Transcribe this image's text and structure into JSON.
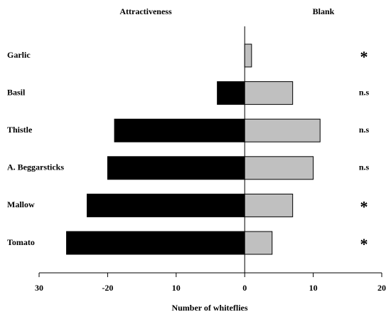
{
  "chart_data": {
    "type": "diverging-bar",
    "x_label": "Number of whiteflies",
    "categories": [
      "Garlic",
      "Basil",
      "Thistle",
      "A. Beggarsticks",
      "Mallow",
      "Tomato"
    ],
    "series": [
      {
        "name": "Attractiveness",
        "color": "#000000",
        "values": [
          0,
          -4,
          -19,
          -20,
          -23,
          -26
        ]
      },
      {
        "name": "Blank",
        "color": "#c0c0c0",
        "values": [
          1,
          7,
          11,
          10,
          7,
          4
        ]
      }
    ],
    "annotations": [
      "*",
      "n.s",
      "n.s",
      "n.s",
      "*",
      "*"
    ],
    "xlim": [
      -30,
      20
    ],
    "xticks": [
      {
        "value": -30,
        "label": "30"
      },
      -20,
      {
        "value": -10,
        "label": "10"
      },
      0,
      10,
      20
    ]
  }
}
